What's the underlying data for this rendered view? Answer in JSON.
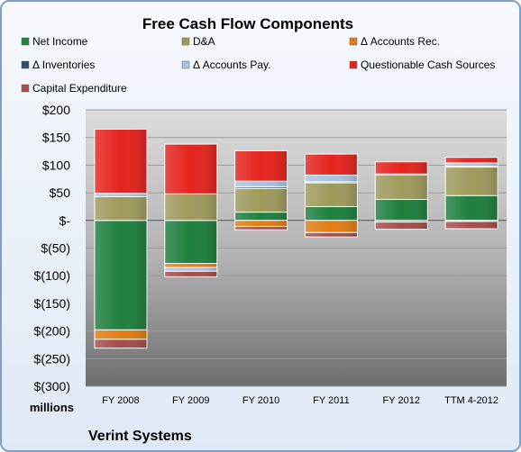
{
  "chart_data": {
    "type": "bar",
    "stacked": true,
    "title": "Free Cash Flow Components",
    "company": "Verint Systems",
    "units_label": "millions",
    "categories": [
      "FY 2008",
      "FY 2009",
      "FY 2010",
      "FY 2011",
      "FY 2012",
      "TTM 4-2012"
    ],
    "ylim": [
      -300,
      200
    ],
    "yticks": [
      "$200",
      "$150",
      "$100",
      "$50",
      "$-",
      "$(50)",
      "$(100)",
      "$(150)",
      "$(200)",
      "$(250)",
      "$(300)"
    ],
    "legend_position": "top",
    "series": [
      {
        "name": "Net Income",
        "color": "#1e7f3e",
        "values": [
          -198,
          -78,
          15,
          25,
          38,
          45
        ]
      },
      {
        "name": "D&A",
        "color": "#9e9a5c",
        "values": [
          43,
          48,
          43,
          43,
          45,
          52
        ]
      },
      {
        "name": "Δ Accounts Rec.",
        "color": "#e07e12",
        "values": [
          -17,
          -7,
          -11,
          -22,
          -3,
          -2
        ]
      },
      {
        "name": "Δ Inventories",
        "color": "#2f4f6f",
        "values": [
          0,
          0,
          3,
          2,
          0,
          1
        ]
      },
      {
        "name": "Δ Accounts Pay.",
        "color": "#a9c2e0",
        "values": [
          6,
          -7,
          10,
          12,
          1,
          6
        ]
      },
      {
        "name": "Questionable Cash Sources",
        "color": "#e5231e",
        "values": [
          116,
          90,
          55,
          38,
          22,
          10
        ]
      },
      {
        "name": "Capital Expenditure",
        "color": "#a64c4a",
        "values": [
          -16,
          -10,
          -6,
          -8,
          -13,
          -13
        ]
      }
    ]
  }
}
